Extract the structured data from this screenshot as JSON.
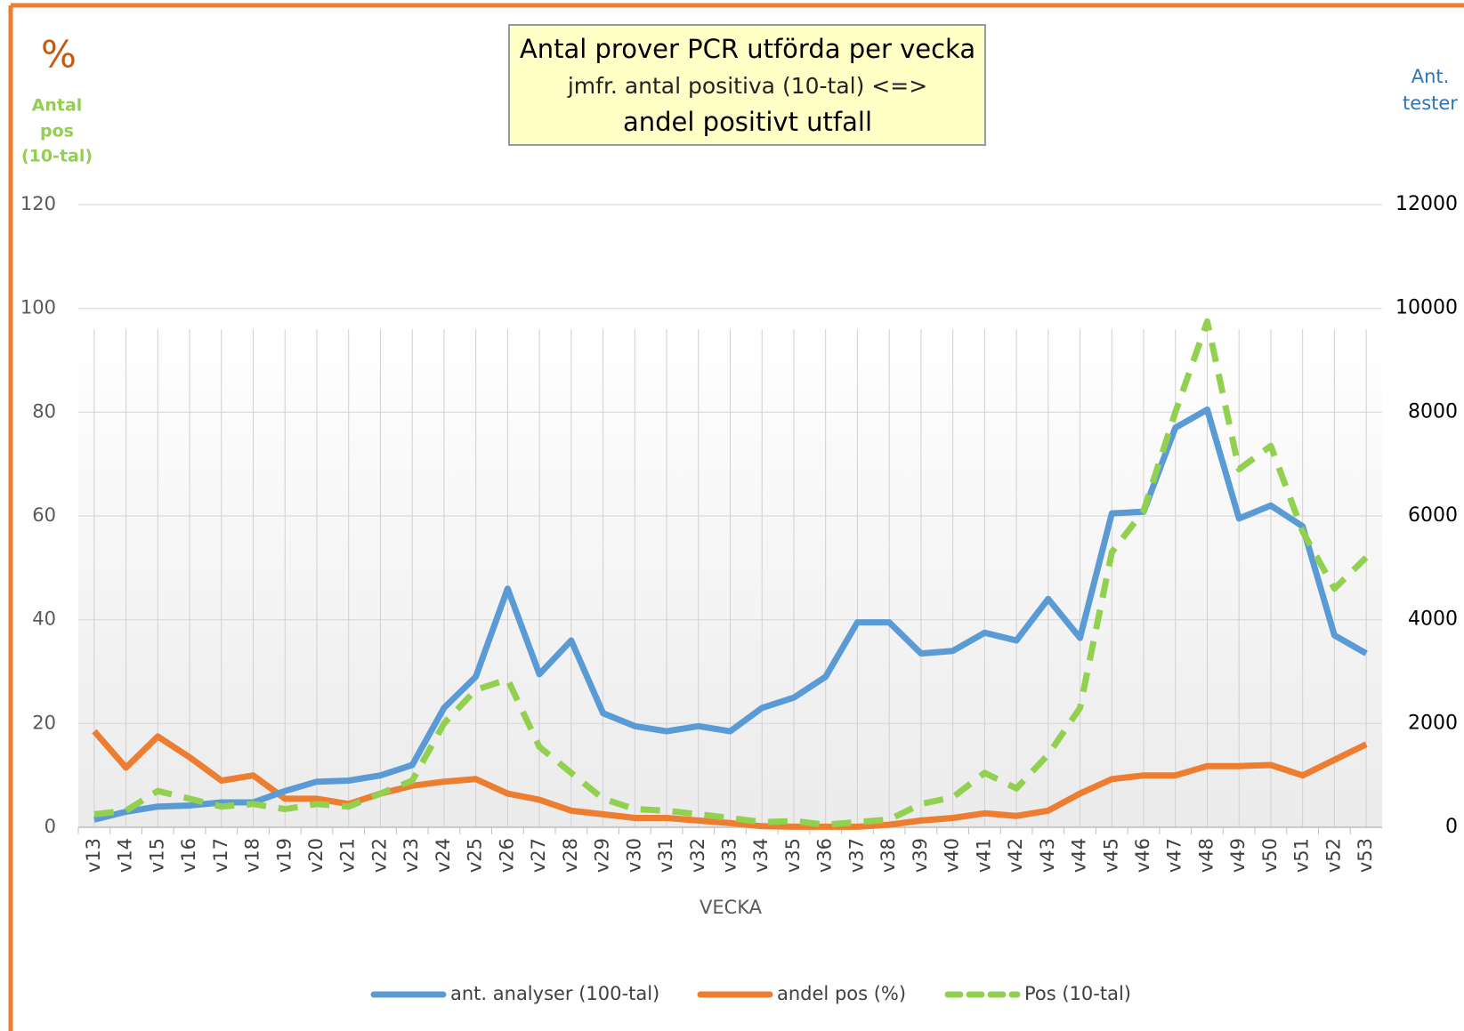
{
  "chart_data": {
    "type": "line",
    "title_lines": [
      "Antal prover PCR utförda per vecka",
      "jmfr. antal positiva (10-tal) <=>",
      "andel positivt utfall"
    ],
    "ylabel_symbol": "%",
    "ylabel_lines": [
      "Antal",
      "pos",
      "(10-tal)"
    ],
    "y2label_lines": [
      "Ant.",
      "tester"
    ],
    "xlabel": "VECKA",
    "categories": [
      "v13",
      "v14",
      "v15",
      "v16",
      "v17",
      "v18",
      "v19",
      "v20",
      "v21",
      "v22",
      "v23",
      "v24",
      "v25",
      "v26",
      "v27",
      "v28",
      "v29",
      "v30",
      "v31",
      "v32",
      "v33",
      "v34",
      "v35",
      "v36",
      "v37",
      "v38",
      "v39",
      "v40",
      "v41",
      "v42",
      "v43",
      "v44",
      "v45",
      "v46",
      "v47",
      "v48",
      "v49",
      "v50",
      "v51",
      "v52",
      "v53"
    ],
    "series": [
      {
        "name": "ant. analyser (100-tal)",
        "color": "#5b9bd5",
        "dash": false,
        "values": [
          1.5,
          3,
          4,
          4.2,
          4.8,
          4.8,
          7,
          8.8,
          9,
          10,
          12,
          23,
          29,
          46,
          29.5,
          36,
          22,
          19.5,
          18.5,
          19.5,
          18.5,
          23,
          25,
          29,
          39.5,
          39.5,
          33.5,
          34,
          37.5,
          36,
          44,
          36.5,
          60.5,
          60.8,
          77,
          80.5,
          59.5,
          62,
          58,
          37,
          33.5
        ]
      },
      {
        "name": "andel pos (%)",
        "color": "#ed7d31",
        "dash": false,
        "values": [
          18.5,
          11.5,
          17.5,
          13.5,
          9,
          10,
          5.5,
          5.5,
          4.5,
          6.5,
          8,
          8.8,
          9.3,
          6.5,
          5.3,
          3.2,
          2.5,
          1.8,
          1.8,
          1.3,
          0.8,
          0.2,
          0.1,
          0.1,
          0.1,
          0.5,
          1.3,
          1.8,
          2.7,
          2.2,
          3.2,
          6.5,
          9.3,
          10,
          10,
          11.8,
          11.8,
          12,
          10,
          13,
          16
        ]
      },
      {
        "name": "Pos (10-tal)",
        "color": "#92d050",
        "dash": true,
        "values": [
          2.5,
          3.2,
          7,
          5.5,
          4,
          4.5,
          3.5,
          4.5,
          4,
          6.5,
          9,
          20,
          26.5,
          28.5,
          15.5,
          10.5,
          5.5,
          3.5,
          3.2,
          2.5,
          1.8,
          1,
          1.2,
          0.5,
          1,
          1.5,
          4.5,
          5.8,
          10.5,
          7.5,
          14,
          23,
          53,
          61,
          80,
          97.5,
          69,
          73.5,
          57,
          46,
          52
        ]
      }
    ],
    "ylim": [
      0,
      120
    ],
    "yticks": [
      0,
      20,
      40,
      60,
      80,
      100,
      120
    ],
    "y2lim": [
      0,
      12000
    ],
    "y2ticks": [
      0,
      2000,
      4000,
      6000,
      8000,
      10000,
      12000
    ],
    "grid": true
  }
}
